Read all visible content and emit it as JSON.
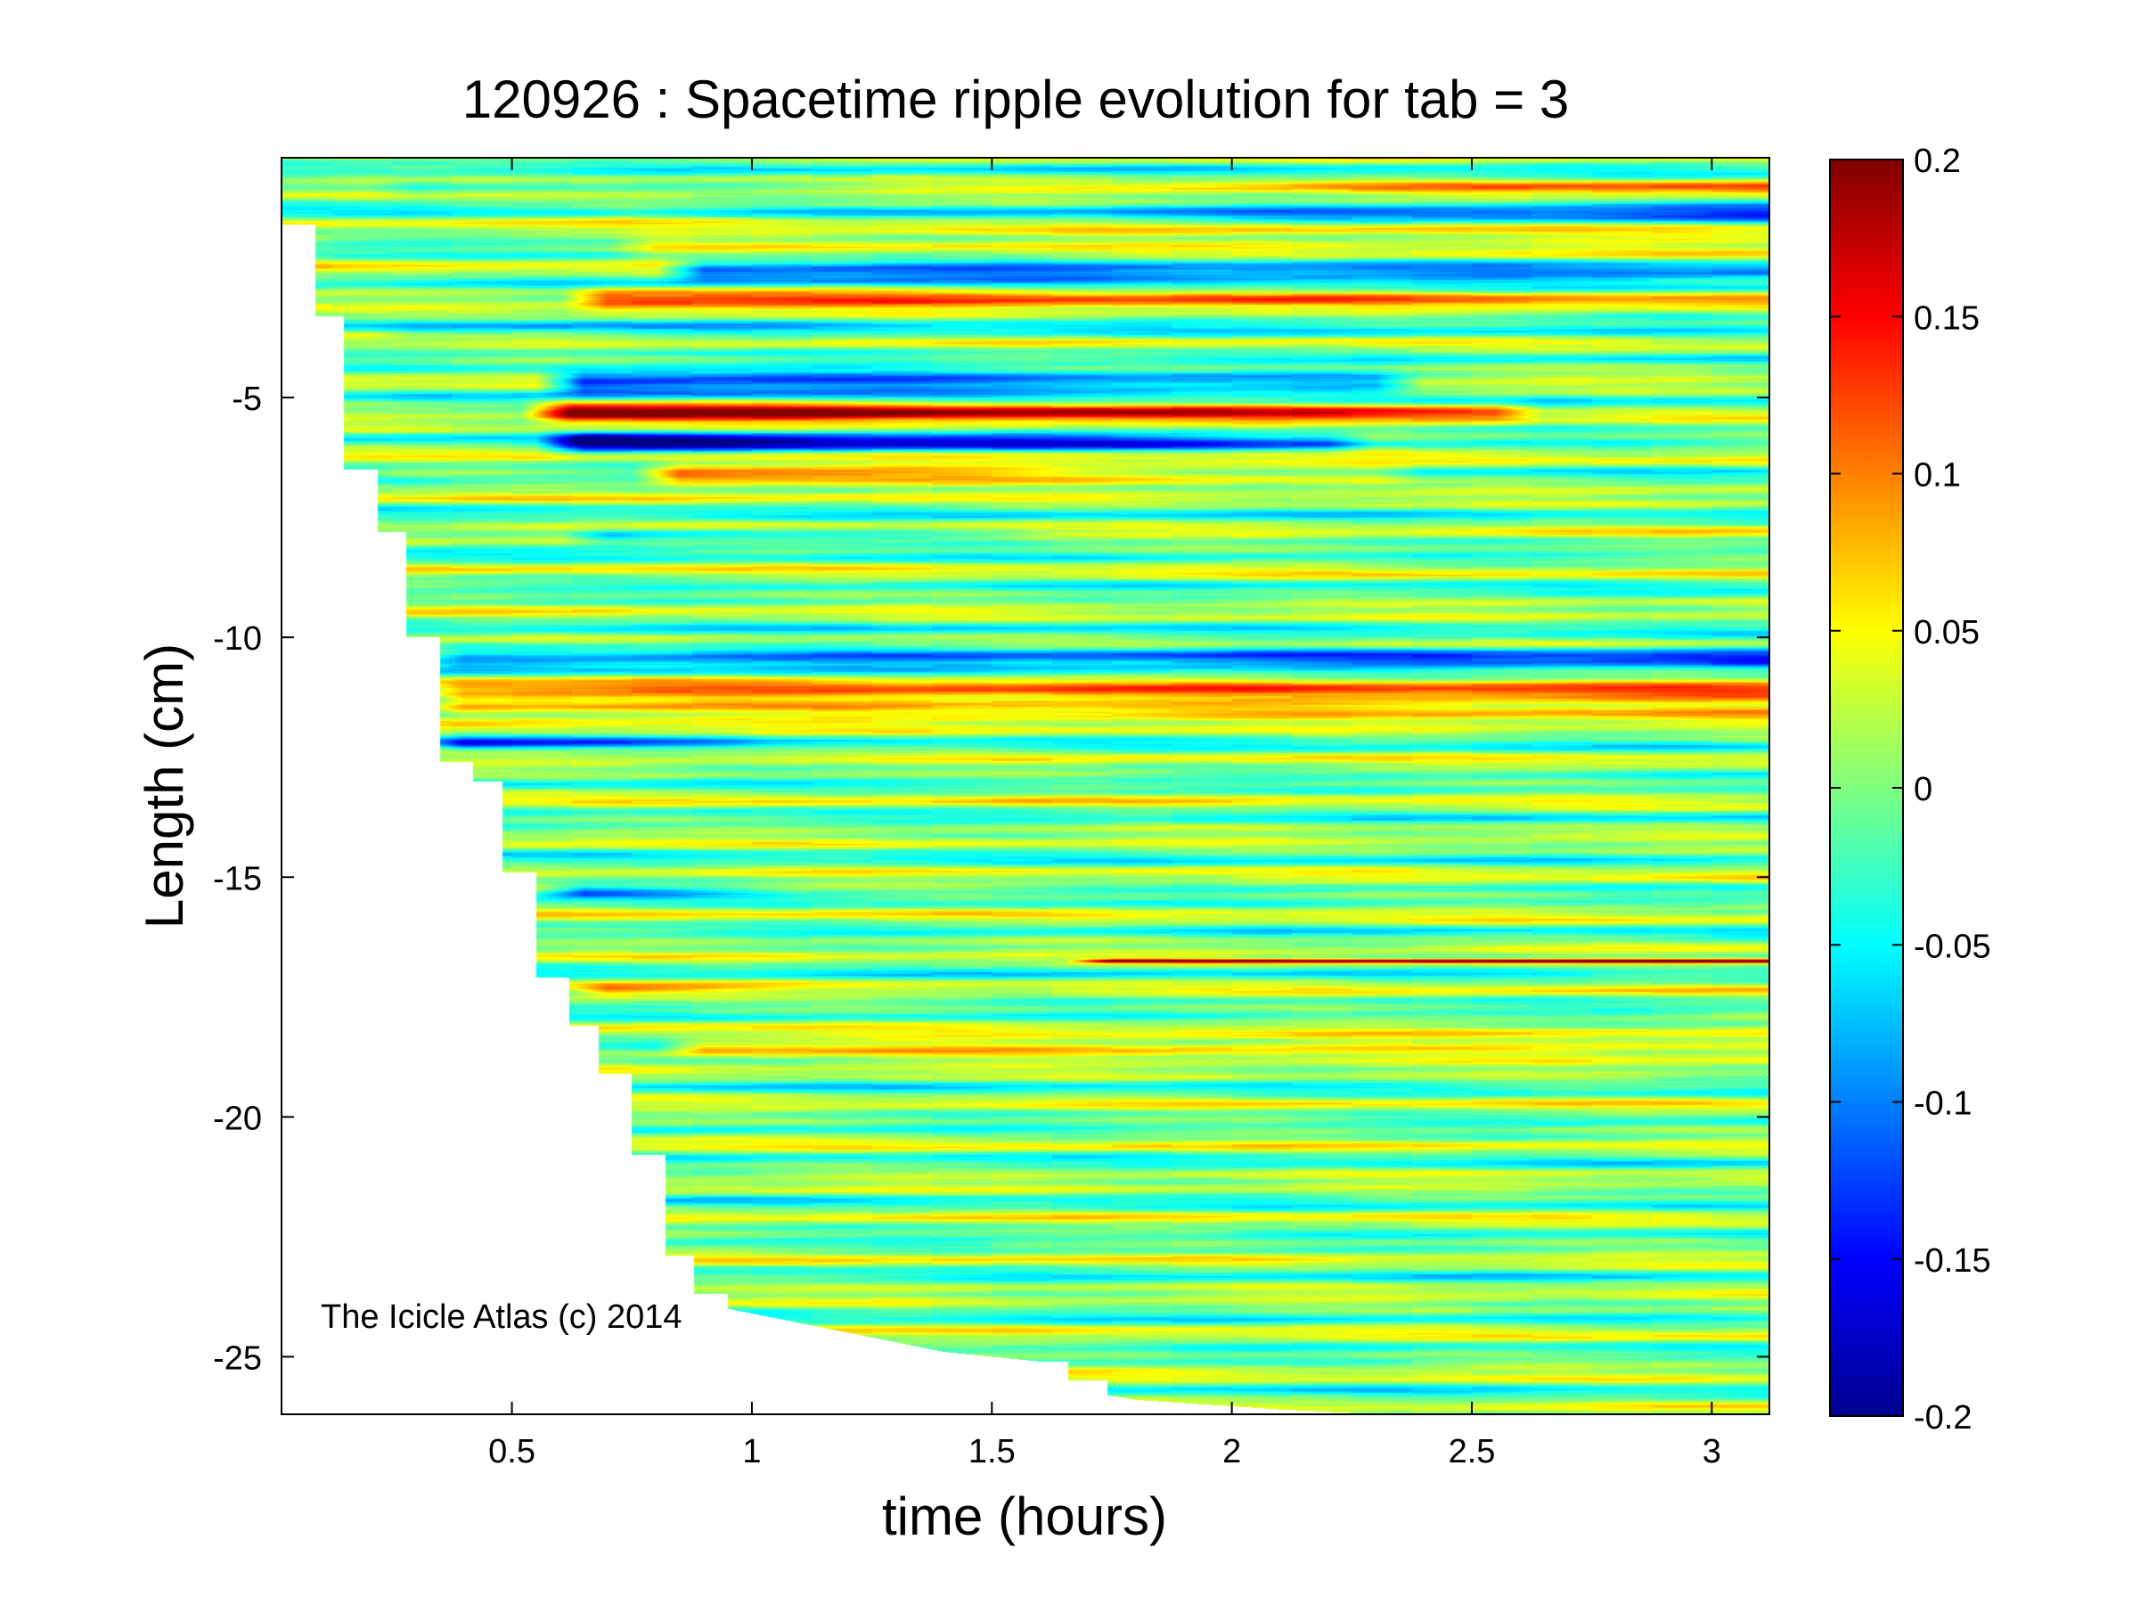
{
  "chart_data": {
    "type": "heatmap",
    "title": "120926 : Spacetime ripple evolution for tab = 3",
    "xlabel": "time (hours)",
    "ylabel": "Length (cm)",
    "watermark": "The Icicle Atlas (c) 2014",
    "xlim": [
      0.02,
      3.12
    ],
    "ylim": [
      -26.2,
      0.0
    ],
    "xticks": [
      0.5,
      1,
      1.5,
      2,
      2.5,
      3
    ],
    "xtick_labels": [
      "0.5",
      "1",
      "1.5",
      "2",
      "2.5",
      "3"
    ],
    "yticks": [
      -5,
      -10,
      -15,
      -20,
      -25
    ],
    "ytick_labels": [
      "-5",
      "-10",
      "-15",
      "-20",
      "-25"
    ],
    "colorbar": {
      "min": -0.2,
      "max": 0.2,
      "colormap": "jet",
      "ticks": [
        0.2,
        0.15,
        0.1,
        0.05,
        0,
        -0.05,
        -0.1,
        -0.15,
        -0.2
      ],
      "tick_labels": [
        "0.2",
        "0.15",
        "0.1",
        "0.05",
        "0",
        "-0.05",
        "-0.1",
        "-0.15",
        "-0.2"
      ]
    },
    "data_boundary": {
      "description": "time at which data begins for each length (data region lies to the right of this stepped edge)",
      "x": [
        0.02,
        0.09,
        0.09,
        0.15,
        0.15,
        0.22,
        0.22,
        0.28,
        0.28,
        0.35,
        0.35,
        0.42,
        0.42,
        0.48,
        0.48,
        0.55,
        0.55,
        0.62,
        0.62,
        0.68,
        0.68,
        0.75,
        0.75,
        0.82,
        0.82,
        0.88,
        0.88,
        0.95,
        0.95,
        1.1,
        1.25,
        1.4,
        1.6,
        1.66,
        1.66,
        1.74,
        1.74,
        1.8,
        1.95,
        2.1,
        2.3,
        2.6,
        3.12
      ],
      "y": [
        -1.4,
        -1.4,
        -3.3,
        -3.3,
        -6.5,
        -6.5,
        -7.8,
        -7.8,
        -10.0,
        -10.0,
        -12.6,
        -12.6,
        -13.0,
        -13.0,
        -14.9,
        -14.9,
        -17.1,
        -17.1,
        -18.1,
        -18.1,
        -19.1,
        -19.1,
        -20.8,
        -20.8,
        -22.9,
        -22.9,
        -23.7,
        -23.7,
        -24.0,
        -24.3,
        -24.6,
        -24.9,
        -25.1,
        -25.1,
        -25.5,
        -25.5,
        -25.8,
        -25.9,
        -26.0,
        -26.1,
        -26.2,
        -26.2,
        -26.2
      ]
    },
    "ridges": [
      {
        "y": -0.65,
        "x": [
          0.3,
          3.12
        ],
        "amp": [
          -0.04,
          0.08
        ],
        "width": 0.28
      },
      {
        "y": -1.15,
        "x": [
          0.75,
          3.12
        ],
        "amp": [
          0.02,
          -0.12
        ],
        "width": 0.3
      },
      {
        "y": -1.85,
        "x": [
          0.8,
          3.12
        ],
        "amp": [
          0.06,
          0.08
        ],
        "width": 0.35
      },
      {
        "y": -2.35,
        "x": [
          0.9,
          3.12
        ],
        "amp": [
          -0.16,
          -0.13
        ],
        "width": 0.3
      },
      {
        "y": -2.95,
        "x": [
          0.7,
          3.12
        ],
        "amp": [
          0.12,
          0.04
        ],
        "width": 0.35
      },
      {
        "y": -3.65,
        "x": [
          0.3,
          3.12
        ],
        "amp": [
          -0.04,
          -0.02
        ],
        "width": 0.3
      },
      {
        "y": -4.7,
        "x": [
          0.65,
          2.3
        ],
        "amp": [
          -0.18,
          -0.1
        ],
        "width": 0.35
      },
      {
        "y": -5.3,
        "x": [
          0.62,
          2.55
        ],
        "amp": [
          0.2,
          0.1
        ],
        "width": 0.32
      },
      {
        "y": -5.95,
        "x": [
          0.65,
          2.2
        ],
        "amp": [
          -0.19,
          -0.08
        ],
        "width": 0.3
      },
      {
        "y": -6.6,
        "x": [
          0.85,
          2.3
        ],
        "amp": [
          0.14,
          0.05
        ],
        "width": 0.32
      },
      {
        "y": -7.9,
        "x": [
          0.7,
          1.5
        ],
        "amp": [
          -0.08,
          -0.02
        ],
        "width": 0.25
      },
      {
        "y": -10.4,
        "x": [
          0.4,
          3.12
        ],
        "amp": [
          -0.09,
          -0.13
        ],
        "width": 0.35
      },
      {
        "y": -11.3,
        "x": [
          0.4,
          3.12
        ],
        "amp": [
          0.1,
          0.11
        ],
        "width": 0.55
      },
      {
        "y": -12.2,
        "x": [
          0.4,
          0.95
        ],
        "amp": [
          -0.1,
          -0.02
        ],
        "width": 0.25
      },
      {
        "y": -15.3,
        "x": [
          0.65,
          1.0
        ],
        "amp": [
          -0.1,
          -0.02
        ],
        "width": 0.2
      },
      {
        "y": -16.75,
        "x": [
          1.75,
          3.12
        ],
        "amp": [
          0.2,
          0.2
        ],
        "width": 0.06
      },
      {
        "y": -18.55,
        "x": [
          0.9,
          3.12
        ],
        "amp": [
          0.11,
          0.09
        ],
        "width": 0.25
      },
      {
        "y": -17.35,
        "x": [
          0.7,
          1.0
        ],
        "amp": [
          0.09,
          0.02
        ],
        "width": 0.2
      }
    ]
  }
}
